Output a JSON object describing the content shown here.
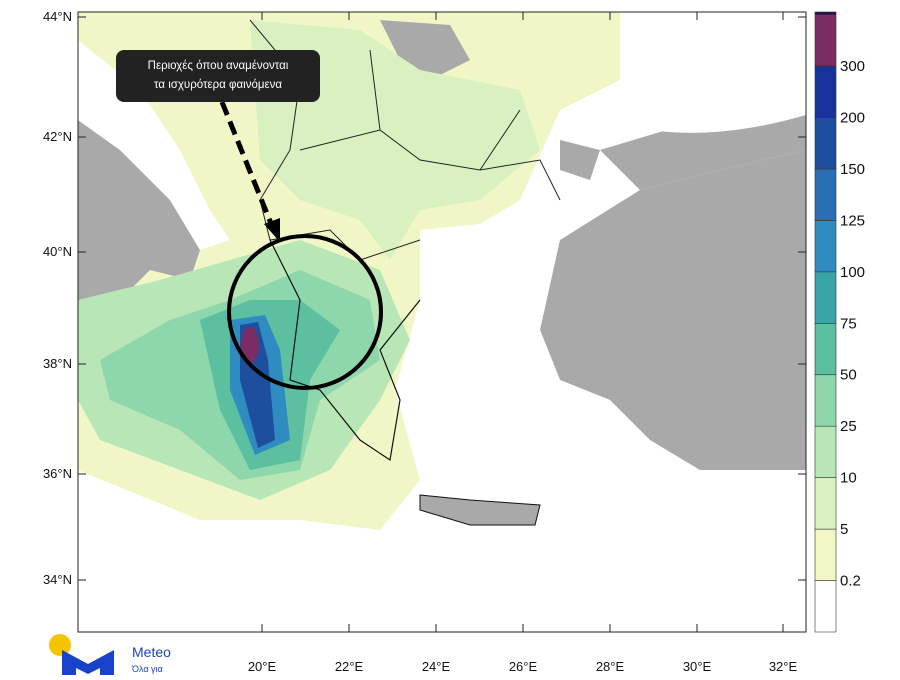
{
  "map": {
    "lat_labels": [
      "44°N",
      "42°N",
      "40°N",
      "38°N",
      "36°N",
      "34°N"
    ],
    "lon_labels": [
      "20°E",
      "22°E",
      "24°E",
      "26°E",
      "28°E",
      "30°E",
      "32°E"
    ],
    "annotation": [
      "Περιοχές όπου αναμένονται",
      "τα ισχυρότερα φαινόμενα"
    ]
  },
  "colorbar": {
    "labels": [
      "0.2",
      "5",
      "10",
      "25",
      "50",
      "75",
      "100",
      "125",
      "150",
      "200",
      "300"
    ],
    "colors": [
      "#ffffff",
      "#f3f7c6",
      "#d9f1c0",
      "#b8e6b6",
      "#8ed6ab",
      "#5cbf9f",
      "#3aa3a8",
      "#2f8cc0",
      "#2a6fb4",
      "#1d4f9e",
      "#17339a",
      "#7b2d63",
      "#2b0b4d"
    ]
  },
  "logo": {
    "name": "Meteo",
    "tagline": "Όλα για"
  }
}
